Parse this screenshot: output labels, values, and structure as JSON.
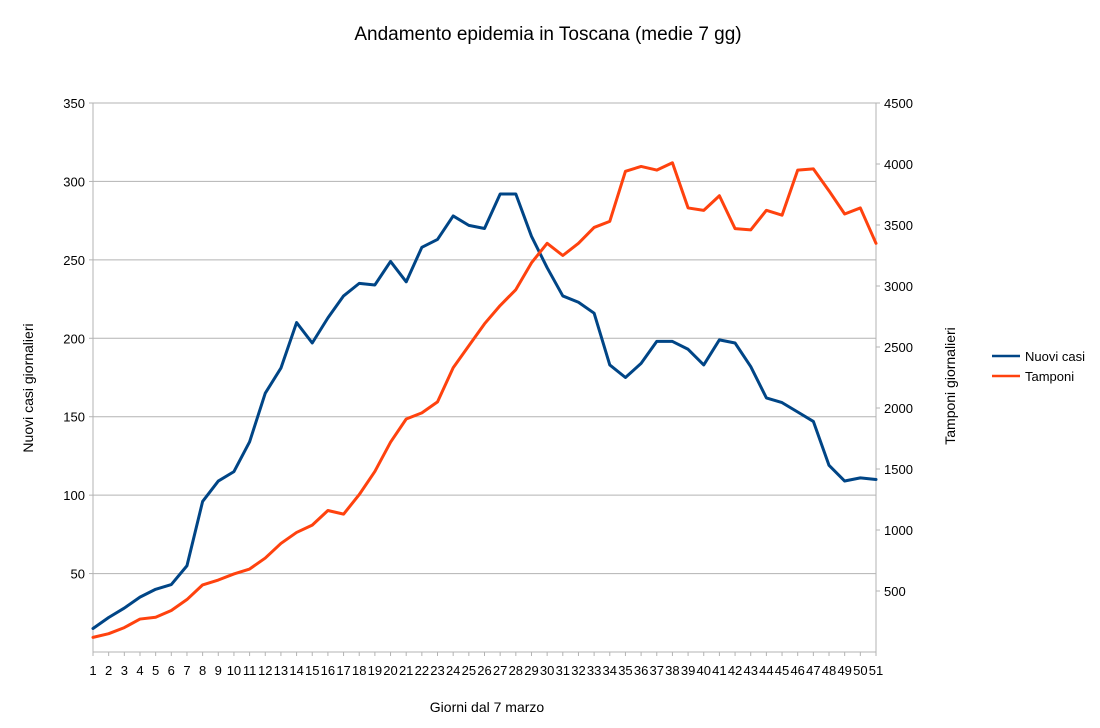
{
  "chart_data": {
    "type": "line",
    "title": "Andamento epidemia in Toscana (medie 7 gg)",
    "xlabel": "Giorni dal 7 marzo",
    "ylabel_left": "Nuovi casi giornalieri",
    "ylabel_right": "Tamponi giornalieri",
    "x": [
      1,
      2,
      3,
      4,
      5,
      6,
      7,
      8,
      9,
      10,
      11,
      12,
      13,
      14,
      15,
      16,
      17,
      18,
      19,
      20,
      21,
      22,
      23,
      24,
      25,
      26,
      27,
      28,
      29,
      30,
      31,
      32,
      33,
      34,
      35,
      36,
      37,
      38,
      39,
      40,
      41,
      42,
      43,
      44,
      45,
      46,
      47,
      48,
      49,
      50,
      51
    ],
    "ylim_left": [
      0,
      350
    ],
    "yticks_left": [
      50,
      100,
      150,
      200,
      250,
      300,
      350
    ],
    "ylim_right": [
      0,
      4500
    ],
    "yticks_right": [
      500,
      1000,
      1500,
      2000,
      2500,
      3000,
      3500,
      4000,
      4500
    ],
    "grid": true,
    "legend_position": "right",
    "series": [
      {
        "name": "Nuovi casi",
        "axis": "left",
        "color": "#004586",
        "values": [
          15,
          22,
          28,
          35,
          40,
          43,
          55,
          96,
          109,
          115,
          134,
          165,
          181,
          210,
          197,
          213,
          227,
          235,
          234,
          249,
          236,
          258,
          263,
          278,
          272,
          270,
          292,
          292,
          265,
          245,
          227,
          223,
          216,
          183,
          175,
          184,
          198,
          198,
          193,
          183,
          199,
          197,
          182,
          162,
          159,
          153,
          147,
          119,
          109,
          111,
          110
        ]
      },
      {
        "name": "Tamponi",
        "axis": "right",
        "color": "#ff420e",
        "values": [
          120,
          150,
          200,
          270,
          285,
          340,
          430,
          550,
          590,
          640,
          680,
          770,
          890,
          980,
          1040,
          1160,
          1130,
          1290,
          1480,
          1720,
          1910,
          1960,
          2050,
          2330,
          2510,
          2690,
          2840,
          2970,
          3190,
          3350,
          3250,
          3350,
          3480,
          3530,
          3940,
          3980,
          3950,
          4010,
          3640,
          3620,
          3740,
          3470,
          3460,
          3620,
          3580,
          3950,
          3960,
          3780,
          3590,
          3640,
          3350
        ]
      }
    ]
  }
}
